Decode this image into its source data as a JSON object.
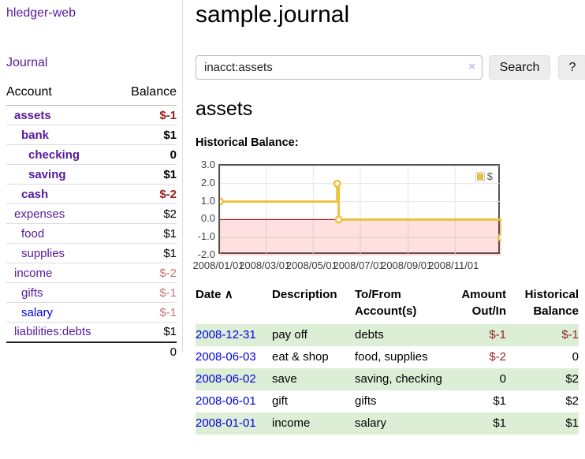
{
  "app_title": "hledger-web",
  "sidebar": {
    "journal_link": "Journal",
    "accounts": {
      "headers": {
        "account": "Account",
        "balance": "Balance"
      },
      "rows": [
        {
          "account": "assets",
          "balance": "$-1",
          "level": 1,
          "bold": true,
          "negative": "strong"
        },
        {
          "account": "bank",
          "balance": "$1",
          "level": 2,
          "bold": true
        },
        {
          "account": "checking",
          "balance": "0",
          "level": 3,
          "bold": true
        },
        {
          "account": "saving",
          "balance": "$1",
          "level": 3,
          "bold": true
        },
        {
          "account": "cash",
          "balance": "$-2",
          "level": 2,
          "bold": true,
          "negative": "strong"
        },
        {
          "account": "expenses",
          "balance": "$2",
          "level": 1,
          "bold": false
        },
        {
          "account": "food",
          "balance": "$1",
          "level": 2,
          "bold": false
        },
        {
          "account": "supplies",
          "balance": "$1",
          "level": 2,
          "bold": false
        },
        {
          "account": "income",
          "balance": "$-2",
          "level": 1,
          "bold": false,
          "negative": "soft"
        },
        {
          "account": "gifts",
          "balance": "$-1",
          "level": 2,
          "bold": false,
          "negative": "soft"
        },
        {
          "account": "salary",
          "balance": "$-1",
          "level": 2,
          "bold": false,
          "negative": "soft",
          "link_color": "blue"
        },
        {
          "account": "liabilities:debts",
          "balance": "$1",
          "level": 1,
          "bold": false
        }
      ],
      "total": "0"
    }
  },
  "main": {
    "title": "sample.journal",
    "search": {
      "value": "inacct:assets",
      "clear_icon": "×",
      "search_button": "Search",
      "help_button": "?"
    },
    "account_heading": "assets",
    "section_label": "Historical Balance:"
  },
  "chart_data": {
    "type": "line",
    "step": true,
    "title": "Historical Balance:",
    "series": [
      {
        "name": "$",
        "color": "#edc240",
        "points": [
          [
            "2008-01-01",
            1
          ],
          [
            "2008-06-01",
            2
          ],
          [
            "2008-06-03",
            0
          ],
          [
            "2008-12-31",
            -1
          ]
        ]
      }
    ],
    "x_ticks": [
      "2008/01/01",
      "2008/03/01",
      "2008/05/01",
      "2008/07/01",
      "2008/09/01",
      "2008/11/01"
    ],
    "y_ticks": [
      "3.0",
      "2.0",
      "1.0",
      "0.0",
      "-1.0",
      "-2.0"
    ],
    "xlim": [
      "2008-01-01",
      "2008-12-31"
    ],
    "ylim": [
      -2,
      3
    ],
    "grid": true,
    "legend": {
      "label": "$",
      "position": "top-right"
    },
    "zero_line_color": "#8b0000",
    "negative_region_color": "rgba(255,0,0,0.12)",
    "grid_color": "#e4e4e4",
    "border_color": "#545454"
  },
  "register": {
    "headers": [
      {
        "label": "Date",
        "sort_icon": "∧"
      },
      {
        "label": "Description"
      },
      {
        "label": "To/From Account(s)"
      },
      {
        "label": "Amount Out/In"
      },
      {
        "label": "Historical Balance"
      }
    ],
    "rows": [
      {
        "date": "2008-12-31",
        "description": "pay off",
        "accounts": "debts",
        "amount": "$-1",
        "balance": "$-1",
        "amount_negative": true,
        "balance_negative": true
      },
      {
        "date": "2008-06-03",
        "description": "eat & shop",
        "accounts": "food, supplies",
        "amount": "$-2",
        "balance": "0",
        "amount_negative": true
      },
      {
        "date": "2008-06-02",
        "description": "save",
        "accounts": "saving, checking",
        "amount": "0",
        "balance": "$2"
      },
      {
        "date": "2008-06-01",
        "description": "gift",
        "accounts": "gifts",
        "amount": "$1",
        "balance": "$2"
      },
      {
        "date": "2008-01-01",
        "description": "income",
        "accounts": "salary",
        "amount": "$1",
        "balance": "$1"
      }
    ]
  }
}
